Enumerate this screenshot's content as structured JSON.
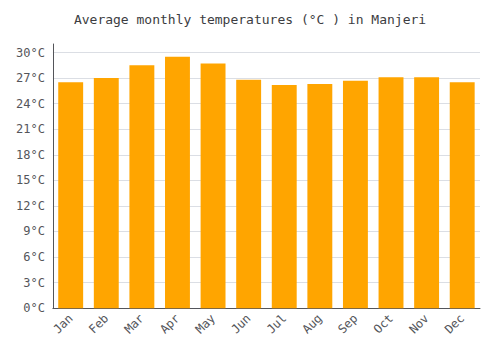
{
  "chart_data": {
    "type": "bar",
    "title": "Average monthly temperatures (°C ) in Manjeri",
    "categories": [
      "Jan",
      "Feb",
      "Mar",
      "Apr",
      "May",
      "Jun",
      "Jul",
      "Aug",
      "Sep",
      "Oct",
      "Nov",
      "Dec"
    ],
    "values": [
      26.5,
      27.0,
      28.5,
      29.5,
      28.7,
      26.8,
      26.2,
      26.3,
      26.7,
      27.1,
      27.1,
      26.5
    ],
    "color": "#FFA500",
    "ylim": [
      0,
      31
    ],
    "yticks": [
      {
        "value": 0,
        "label": "0°C"
      },
      {
        "value": 3,
        "label": "3°C"
      },
      {
        "value": 6,
        "label": "6°C"
      },
      {
        "value": 9,
        "label": "9°C"
      },
      {
        "value": 12,
        "label": "12°C"
      },
      {
        "value": 15,
        "label": "15°C"
      },
      {
        "value": 18,
        "label": "18°C"
      },
      {
        "value": 21,
        "label": "21°C"
      },
      {
        "value": 24,
        "label": "24°C"
      },
      {
        "value": 27,
        "label": "27°C"
      },
      {
        "value": 30,
        "label": "30°C"
      }
    ],
    "grid": true
  }
}
